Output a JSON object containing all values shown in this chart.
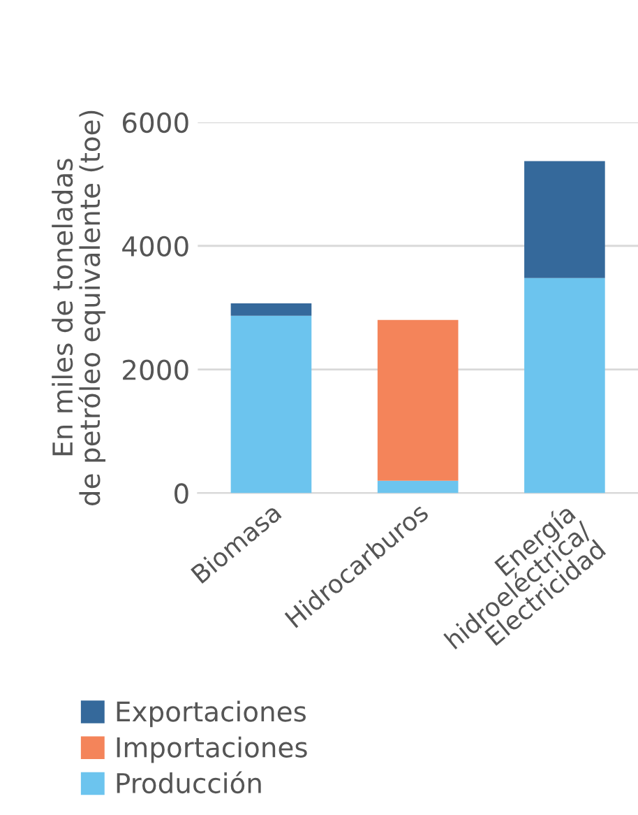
{
  "chart_data": {
    "type": "bar",
    "stacked": true,
    "ylabel": "En miles de toneladas\nde petróleo equivalente (toe)",
    "categories": [
      "Biomasa",
      "Hidrocarburos",
      "Energía\nhidroeléctrica/\nElectricidad"
    ],
    "series": [
      {
        "name": "Producción",
        "color": "#6cc4ee",
        "values": [
          2870,
          200,
          3480
        ]
      },
      {
        "name": "Importaciones",
        "color": "#f4845a",
        "values": [
          null,
          2600,
          null
        ]
      },
      {
        "name": "Exportaciones",
        "color": "#35699b",
        "values": [
          200,
          null,
          1890
        ]
      }
    ],
    "ylim": [
      0,
      6000
    ],
    "yticks": [
      0,
      2000,
      4000,
      6000
    ],
    "grid": "y",
    "legend": "bottom"
  }
}
